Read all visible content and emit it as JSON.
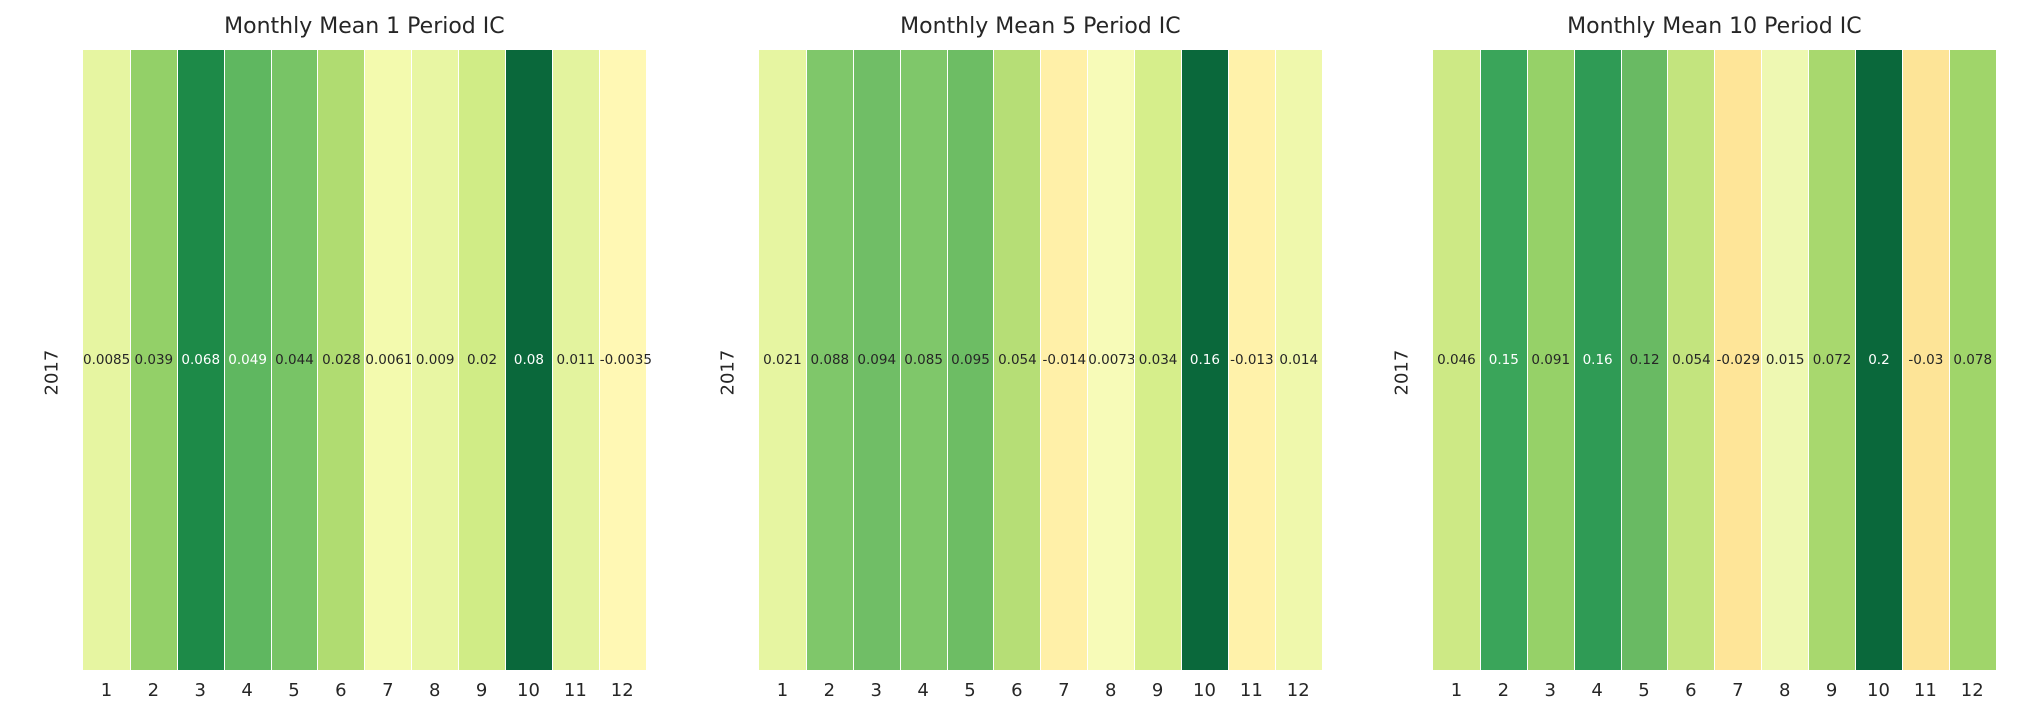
{
  "chart_data": [
    {
      "type": "heatmap",
      "title": "Monthly Mean 1 Period IC",
      "row_labels": [
        "2017"
      ],
      "column_labels": [
        "1",
        "2",
        "3",
        "4",
        "5",
        "6",
        "7",
        "8",
        "9",
        "10",
        "11",
        "12"
      ],
      "values": [
        0.0085,
        0.039,
        0.068,
        0.049,
        0.044,
        0.028,
        0.0061,
        0.009,
        0.02,
        0.08,
        0.011,
        -0.0035
      ],
      "value_labels": [
        "0.0085",
        "0.039",
        "0.068",
        "0.049",
        "0.044",
        "0.028",
        "0.0061",
        "0.009",
        "0.02",
        "0.08",
        "0.011",
        "-0.0035"
      ],
      "cell_colors": [
        "#e6f5a1",
        "#93d068",
        "#1d8a48",
        "#5fb760",
        "#78c466",
        "#b0dc71",
        "#f3faae",
        "#e8f6a3",
        "#d0ec86",
        "#0a683b",
        "#e3f39e",
        "#fff8b4"
      ],
      "text_colors": [
        "#262626",
        "#262626",
        "#ffffff",
        "#ffffff",
        "#262626",
        "#262626",
        "#262626",
        "#262626",
        "#262626",
        "#ffffff",
        "#262626",
        "#262626"
      ]
    },
    {
      "type": "heatmap",
      "title": "Monthly Mean 5 Period IC",
      "row_labels": [
        "2017"
      ],
      "column_labels": [
        "1",
        "2",
        "3",
        "4",
        "5",
        "6",
        "7",
        "8",
        "9",
        "10",
        "11",
        "12"
      ],
      "values": [
        0.021,
        0.088,
        0.094,
        0.085,
        0.095,
        0.054,
        -0.014,
        0.0073,
        0.034,
        0.16,
        -0.013,
        0.014
      ],
      "value_labels": [
        "0.021",
        "0.088",
        "0.094",
        "0.085",
        "0.095",
        "0.054",
        "-0.014",
        "0.0073",
        "0.034",
        "0.16",
        "-0.013",
        "0.014"
      ],
      "cell_colors": [
        "#e6f5a1",
        "#7fc76a",
        "#70be66",
        "#7fc76a",
        "#6dbd64",
        "#b6de76",
        "#fff0a8",
        "#f7fbb8",
        "#d6ee8b",
        "#0a683b",
        "#fff2aa",
        "#eff8ac"
      ],
      "text_colors": [
        "#262626",
        "#262626",
        "#262626",
        "#262626",
        "#262626",
        "#262626",
        "#262626",
        "#262626",
        "#262626",
        "#ffffff",
        "#262626",
        "#262626"
      ]
    },
    {
      "type": "heatmap",
      "title": "Monthly Mean 10 Period IC",
      "row_labels": [
        "2017"
      ],
      "column_labels": [
        "1",
        "2",
        "3",
        "4",
        "5",
        "6",
        "7",
        "8",
        "9",
        "10",
        "11",
        "12"
      ],
      "values": [
        0.046,
        0.15,
        0.091,
        0.16,
        0.12,
        0.054,
        -0.029,
        0.015,
        0.072,
        0.2,
        -0.03,
        0.078
      ],
      "value_labels": [
        "0.046",
        "0.15",
        "0.091",
        "0.16",
        "0.12",
        "0.054",
        "-0.029",
        "0.015",
        "0.072",
        "0.2",
        "-0.03",
        "0.078"
      ],
      "cell_colors": [
        "#cde985",
        "#3aa55a",
        "#96d168",
        "#2f9b55",
        "#69ba63",
        "#c3e47e",
        "#fee598",
        "#eef8b2",
        "#a8d86e",
        "#0a683b",
        "#fde497",
        "#a0d56a"
      ],
      "text_colors": [
        "#262626",
        "#ffffff",
        "#262626",
        "#ffffff",
        "#262626",
        "#262626",
        "#262626",
        "#262626",
        "#262626",
        "#ffffff",
        "#262626",
        "#262626"
      ]
    }
  ]
}
